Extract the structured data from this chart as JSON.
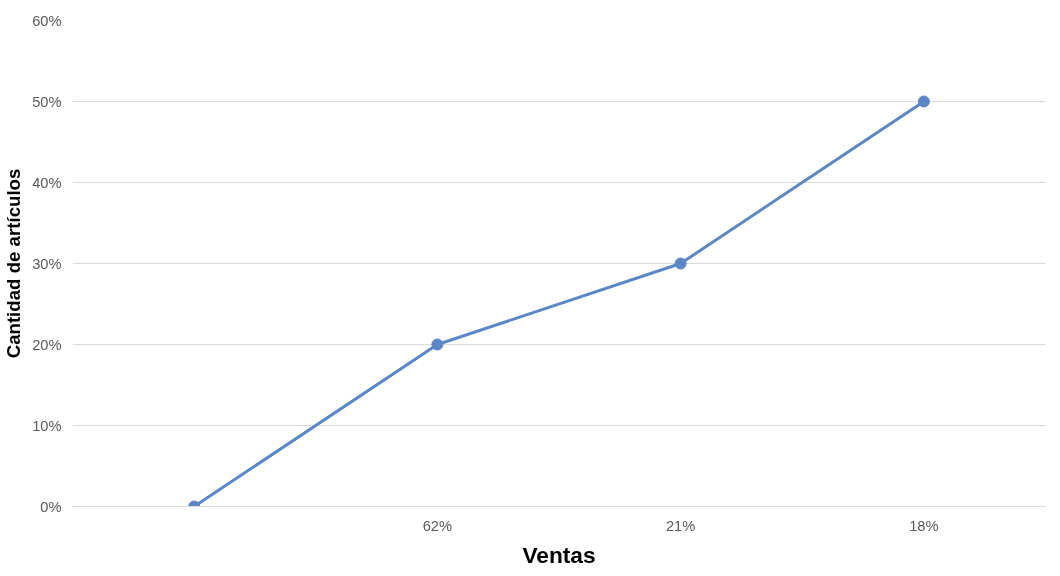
{
  "chart_data": {
    "type": "line",
    "xlabel": "Ventas",
    "ylabel": "Cantidad de artículos",
    "categories": [
      null,
      "62%",
      "21%",
      "18%"
    ],
    "series": [
      {
        "color": "#5b87c5",
        "values": [
          0,
          20,
          30,
          50
        ]
      }
    ],
    "ylim": [
      0,
      60
    ],
    "yticks": [
      {
        "value": 0,
        "label": "0%"
      },
      {
        "value": 10,
        "label": "10%"
      },
      {
        "value": 20,
        "label": "20%"
      },
      {
        "value": 30,
        "label": "30%"
      },
      {
        "value": 40,
        "label": "40%"
      },
      {
        "value": 50,
        "label": "50%"
      },
      {
        "value": 60,
        "label": "60%"
      }
    ],
    "grid": "y",
    "marker": "circle",
    "line_style": "solid"
  }
}
